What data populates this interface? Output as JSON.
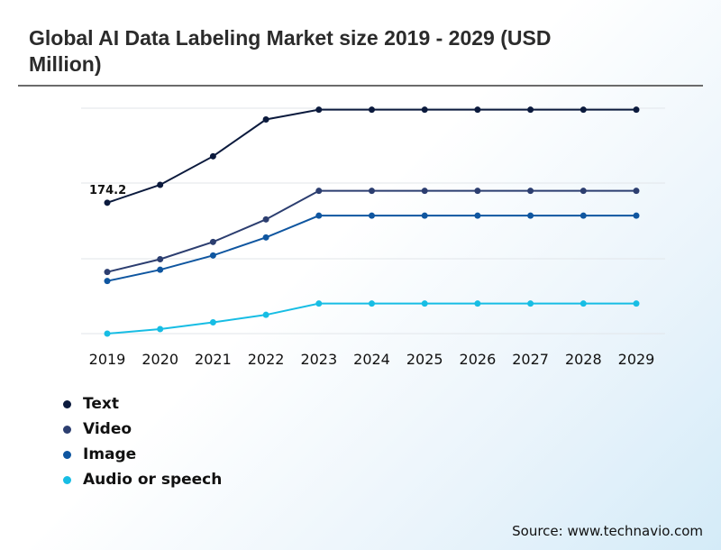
{
  "title": "Global AI Data Labeling Market size 2019 - 2029 (USD Million)",
  "source": "Source: www.technavio.com",
  "chart_data": {
    "type": "line",
    "title": "Global AI Data Labeling Market size 2019 - 2029 (USD Million)",
    "x": [
      "2019",
      "2020",
      "2021",
      "2022",
      "2023",
      "2024",
      "2025",
      "2026",
      "2027",
      "2028",
      "2029"
    ],
    "ylim": [
      0,
      300
    ],
    "grid": true,
    "legend": "bottom-left",
    "annotations": [
      {
        "series": "Text",
        "x": "2019",
        "label": "174.2"
      }
    ],
    "series": [
      {
        "name": "Text",
        "color": "#0b1a3d",
        "values": [
          174.2,
          198,
          236,
          285,
          298,
          298,
          298,
          298,
          298,
          298,
          298
        ]
      },
      {
        "name": "Video",
        "color": "#2c3e70",
        "values": [
          82,
          99,
          122,
          152,
          190,
          190,
          190,
          190,
          190,
          190,
          190
        ]
      },
      {
        "name": "Image",
        "color": "#0f56a0",
        "values": [
          70,
          85,
          104,
          128,
          157,
          157,
          157,
          157,
          157,
          157,
          157
        ]
      },
      {
        "name": "Audio or speech",
        "color": "#17bde4",
        "values": [
          0,
          6,
          15,
          25,
          40,
          40,
          40,
          40,
          40,
          40,
          40
        ]
      }
    ]
  }
}
